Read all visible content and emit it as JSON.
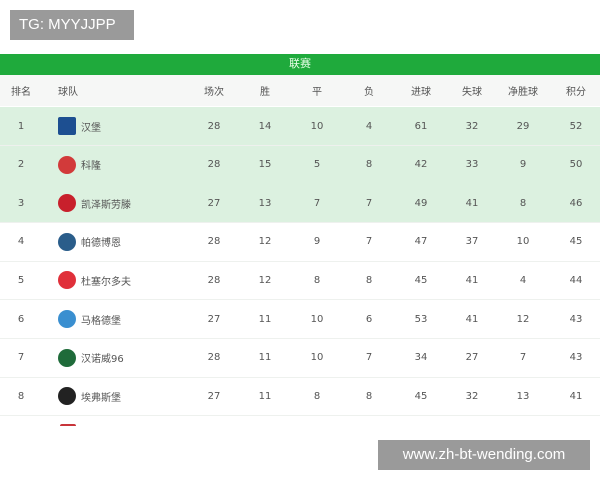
{
  "watermark_top": "TG: MYYJJPP",
  "league_title": "联赛",
  "headers": [
    "排名",
    "球队",
    "场次",
    "胜",
    "平",
    "负",
    "进球",
    "失球",
    "净胜球",
    "积分"
  ],
  "rows": [
    {
      "rank": "1",
      "team": "汉堡",
      "logo": "hamburg-logo-icon",
      "color": "#1d4f91",
      "p": "28",
      "w": "14",
      "d": "10",
      "l": "4",
      "gf": "61",
      "ga": "32",
      "gd": "29",
      "pts": "52"
    },
    {
      "rank": "2",
      "team": "科隆",
      "logo": "koln-logo-icon",
      "color": "#d23a3a",
      "p": "28",
      "w": "15",
      "d": "5",
      "l": "8",
      "gf": "42",
      "ga": "33",
      "gd": "9",
      "pts": "50"
    },
    {
      "rank": "3",
      "team": "凯泽斯劳滕",
      "logo": "kaiserslautern-logo-icon",
      "color": "#c8202c",
      "p": "27",
      "w": "13",
      "d": "7",
      "l": "7",
      "gf": "49",
      "ga": "41",
      "gd": "8",
      "pts": "46"
    },
    {
      "rank": "4",
      "team": "帕德博恩",
      "logo": "paderborn-logo-icon",
      "color": "#2a5d8a",
      "p": "28",
      "w": "12",
      "d": "9",
      "l": "7",
      "gf": "47",
      "ga": "37",
      "gd": "10",
      "pts": "45"
    },
    {
      "rank": "5",
      "team": "杜塞尔多夫",
      "logo": "dusseldorf-logo-icon",
      "color": "#e0303a",
      "p": "28",
      "w": "12",
      "d": "8",
      "l": "8",
      "gf": "45",
      "ga": "41",
      "gd": "4",
      "pts": "44"
    },
    {
      "rank": "6",
      "team": "马格德堡",
      "logo": "magdeburg-logo-icon",
      "color": "#3a8fd0",
      "p": "27",
      "w": "11",
      "d": "10",
      "l": "6",
      "gf": "53",
      "ga": "41",
      "gd": "12",
      "pts": "43"
    },
    {
      "rank": "7",
      "team": "汉诺威96",
      "logo": "hannover-logo-icon",
      "color": "#1f6b3a",
      "p": "28",
      "w": "11",
      "d": "10",
      "l": "7",
      "gf": "34",
      "ga": "27",
      "gd": "7",
      "pts": "43"
    },
    {
      "rank": "8",
      "team": "埃弗斯堡",
      "logo": "elversberg-logo-icon",
      "color": "#222222",
      "p": "27",
      "w": "11",
      "d": "8",
      "l": "8",
      "gf": "45",
      "ga": "32",
      "gd": "13",
      "pts": "41"
    }
  ],
  "highlight_color": "#dcf1e0",
  "accent": "#1faa3c",
  "watermark_bottom": "www.zh-bt-wending.com"
}
